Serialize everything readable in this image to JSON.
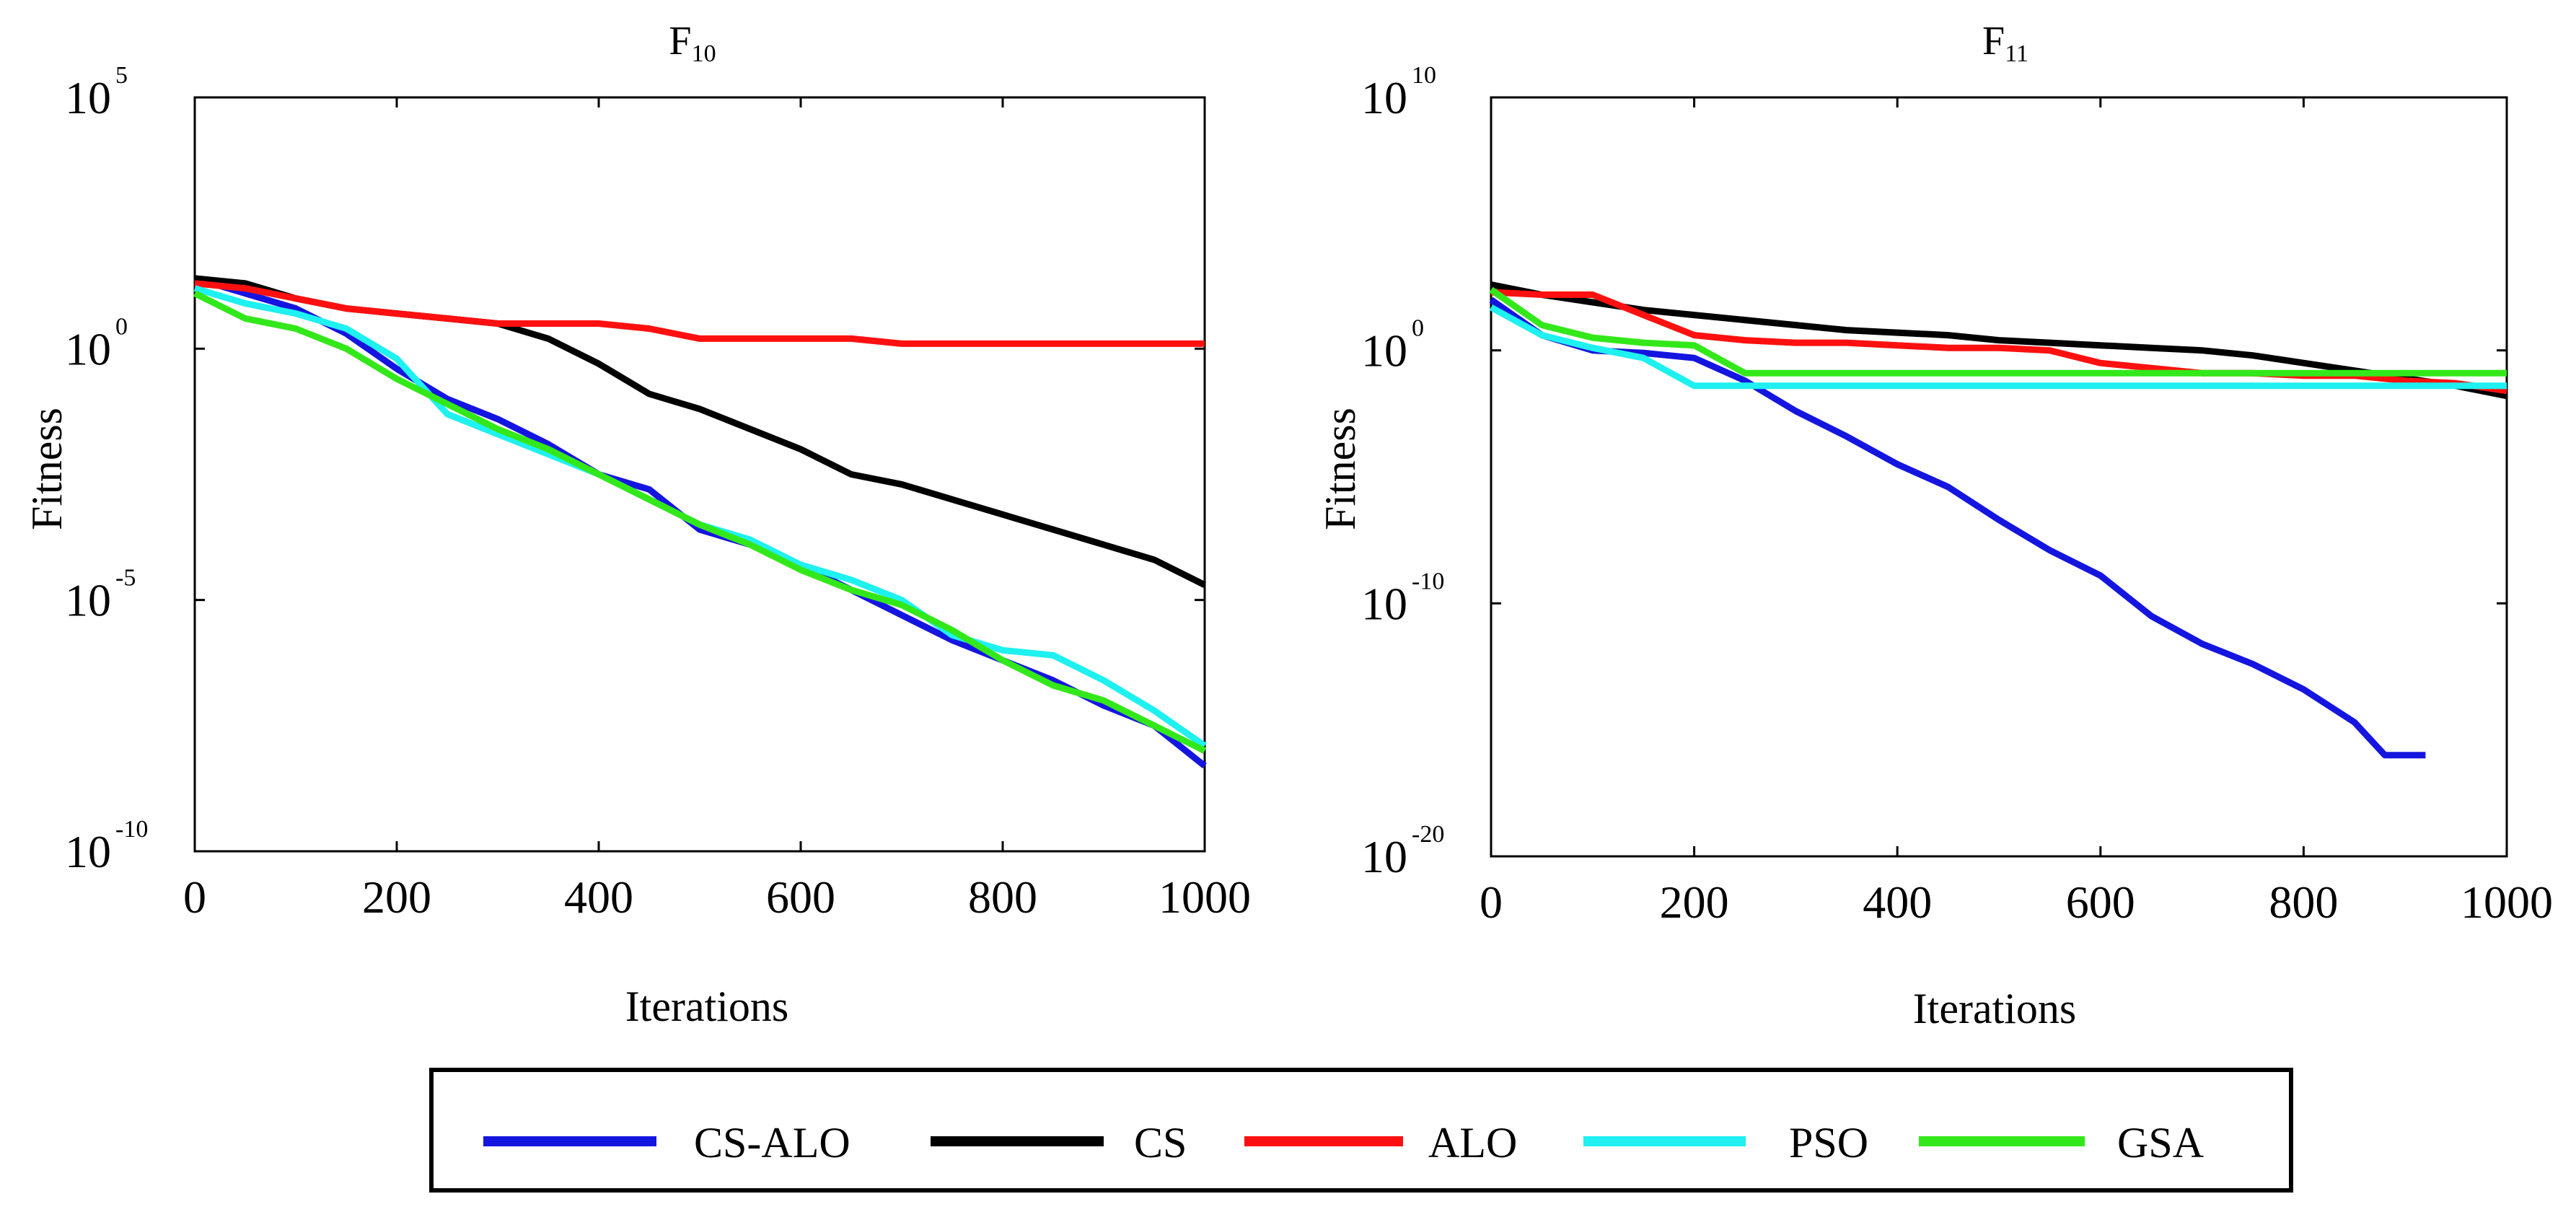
{
  "chart_data": [
    {
      "type": "line",
      "title": "F",
      "title_subscript": "10",
      "xlabel": "Iterations",
      "ylabel": "Fitness",
      "yscale": "log",
      "xlim": [
        0,
        1000
      ],
      "ylim_exponent": [
        -10,
        5
      ],
      "xticks": [
        "0",
        "200",
        "400",
        "600",
        "800",
        "1000"
      ],
      "yticks": [
        {
          "base": "10",
          "exp": "5",
          "value": 5
        },
        {
          "base": "10",
          "exp": "0",
          "value": 0
        },
        {
          "base": "10",
          "exp": "-5",
          "value": -5
        },
        {
          "base": "10",
          "exp": "-10",
          "value": -10
        }
      ],
      "series": [
        {
          "name": "CS-ALO",
          "color": "#1515e0",
          "x": [
            0,
            50,
            100,
            150,
            200,
            250,
            300,
            350,
            400,
            450,
            500,
            550,
            600,
            650,
            700,
            750,
            800,
            850,
            900,
            950,
            1000
          ],
          "log10y": [
            1.4,
            1.1,
            0.8,
            0.3,
            -0.4,
            -1.0,
            -1.4,
            -1.9,
            -2.5,
            -2.8,
            -3.6,
            -3.9,
            -4.3,
            -4.8,
            -5.3,
            -5.8,
            -6.2,
            -6.6,
            -7.1,
            -7.5,
            -8.3
          ]
        },
        {
          "name": "CS",
          "color": "#000000",
          "x": [
            0,
            50,
            100,
            150,
            200,
            250,
            300,
            350,
            400,
            450,
            500,
            550,
            600,
            650,
            700,
            750,
            800,
            850,
            900,
            950,
            1000
          ],
          "log10y": [
            1.4,
            1.3,
            1.0,
            0.8,
            0.7,
            0.6,
            0.5,
            0.2,
            -0.3,
            -0.9,
            -1.2,
            -1.6,
            -2.0,
            -2.5,
            -2.7,
            -3.0,
            -3.3,
            -3.6,
            -3.9,
            -4.2,
            -4.7
          ]
        },
        {
          "name": "ALO",
          "color": "#ff1010",
          "x": [
            0,
            50,
            100,
            150,
            200,
            250,
            300,
            350,
            400,
            450,
            500,
            550,
            600,
            650,
            700,
            750,
            800,
            850,
            900,
            950,
            1000
          ],
          "log10y": [
            1.3,
            1.2,
            1.0,
            0.8,
            0.7,
            0.6,
            0.5,
            0.5,
            0.5,
            0.4,
            0.2,
            0.2,
            0.2,
            0.2,
            0.1,
            0.1,
            0.1,
            0.1,
            0.1,
            0.1,
            0.1
          ]
        },
        {
          "name": "PSO",
          "color": "#1ff0f0",
          "x": [
            0,
            50,
            100,
            150,
            200,
            250,
            300,
            350,
            400,
            450,
            500,
            550,
            600,
            650,
            700,
            750,
            800,
            850,
            900,
            950,
            1000
          ],
          "log10y": [
            1.2,
            0.9,
            0.7,
            0.4,
            -0.2,
            -1.3,
            -1.7,
            -2.1,
            -2.5,
            -3.0,
            -3.5,
            -3.8,
            -4.3,
            -4.6,
            -5.0,
            -5.7,
            -6.0,
            -6.1,
            -6.6,
            -7.2,
            -7.9
          ]
        },
        {
          "name": "GSA",
          "color": "#33e81a",
          "x": [
            0,
            50,
            100,
            150,
            200,
            250,
            300,
            350,
            400,
            450,
            500,
            550,
            600,
            650,
            700,
            750,
            800,
            850,
            900,
            950,
            1000
          ],
          "log10y": [
            1.1,
            0.6,
            0.4,
            0.0,
            -0.6,
            -1.1,
            -1.6,
            -2.0,
            -2.5,
            -3.0,
            -3.5,
            -3.9,
            -4.4,
            -4.8,
            -5.1,
            -5.6,
            -6.2,
            -6.7,
            -7.0,
            -7.5,
            -8.0
          ]
        }
      ]
    },
    {
      "type": "line",
      "title": "F",
      "title_subscript": "11",
      "xlabel": "Iterations",
      "ylabel": "Fitness",
      "yscale": "log",
      "xlim": [
        0,
        1000
      ],
      "ylim_exponent": [
        -20,
        10
      ],
      "xticks": [
        "0",
        "200",
        "400",
        "600",
        "800",
        "1000"
      ],
      "yticks": [
        {
          "base": "10",
          "exp": "10",
          "value": 10
        },
        {
          "base": "10",
          "exp": "0",
          "value": 0
        },
        {
          "base": "10",
          "exp": "-10",
          "value": -10
        },
        {
          "base": "10",
          "exp": "-20",
          "value": -20
        }
      ],
      "series": [
        {
          "name": "CS-ALO",
          "color": "#1515e0",
          "x": [
            0,
            50,
            100,
            150,
            200,
            250,
            300,
            350,
            400,
            450,
            500,
            550,
            600,
            650,
            700,
            750,
            800,
            850,
            880,
            920
          ],
          "log10y": [
            2.0,
            0.6,
            0.0,
            -0.1,
            -0.3,
            -1.2,
            -2.4,
            -3.4,
            -4.5,
            -5.4,
            -6.7,
            -7.9,
            -8.9,
            -10.5,
            -11.6,
            -12.4,
            -13.4,
            -14.7,
            -16.0,
            -16.0
          ]
        },
        {
          "name": "CS",
          "color": "#000000",
          "x": [
            0,
            50,
            100,
            150,
            200,
            250,
            300,
            350,
            400,
            450,
            500,
            550,
            600,
            650,
            700,
            750,
            800,
            850,
            900,
            950,
            1000
          ],
          "log10y": [
            2.6,
            2.2,
            1.9,
            1.6,
            1.4,
            1.2,
            1.0,
            0.8,
            0.7,
            0.6,
            0.4,
            0.3,
            0.2,
            0.1,
            0.0,
            -0.2,
            -0.5,
            -0.8,
            -1.1,
            -1.4,
            -1.8
          ]
        },
        {
          "name": "ALO",
          "color": "#ff1010",
          "x": [
            0,
            50,
            100,
            150,
            200,
            250,
            300,
            350,
            400,
            450,
            500,
            550,
            600,
            650,
            700,
            750,
            800,
            850,
            900,
            950,
            1000
          ],
          "log10y": [
            2.3,
            2.2,
            2.2,
            1.4,
            0.6,
            0.4,
            0.3,
            0.3,
            0.2,
            0.1,
            0.1,
            0.0,
            -0.5,
            -0.7,
            -0.9,
            -0.9,
            -1.0,
            -1.0,
            -1.2,
            -1.3,
            -1.6
          ]
        },
        {
          "name": "PSO",
          "color": "#1ff0f0",
          "x": [
            0,
            50,
            100,
            150,
            200,
            250,
            300,
            350,
            400,
            450,
            500,
            550,
            600,
            650,
            700,
            750,
            800,
            850,
            900,
            950,
            1000
          ],
          "log10y": [
            1.7,
            0.6,
            0.1,
            -0.3,
            -1.4,
            -1.4,
            -1.4,
            -1.4,
            -1.4,
            -1.4,
            -1.4,
            -1.4,
            -1.4,
            -1.4,
            -1.4,
            -1.4,
            -1.4,
            -1.4,
            -1.4,
            -1.4,
            -1.4
          ]
        },
        {
          "name": "GSA",
          "color": "#33e81a",
          "x": [
            0,
            50,
            100,
            150,
            200,
            250,
            300,
            350,
            400,
            450,
            500,
            550,
            600,
            650,
            700,
            750,
            800,
            850,
            900,
            950,
            1000
          ],
          "log10y": [
            2.4,
            1.0,
            0.5,
            0.3,
            0.2,
            -0.9,
            -0.9,
            -0.9,
            -0.9,
            -0.9,
            -0.9,
            -0.9,
            -0.9,
            -0.9,
            -0.9,
            -0.9,
            -0.9,
            -0.9,
            -0.9,
            -0.9,
            -0.9
          ]
        }
      ]
    }
  ],
  "legend": [
    {
      "label": "CS-ALO",
      "color": "#1515e0"
    },
    {
      "label": "CS",
      "color": "#000000"
    },
    {
      "label": "ALO",
      "color": "#ff1010"
    },
    {
      "label": "PSO",
      "color": "#1ff0f0"
    },
    {
      "label": "GSA",
      "color": "#33e81a"
    }
  ]
}
